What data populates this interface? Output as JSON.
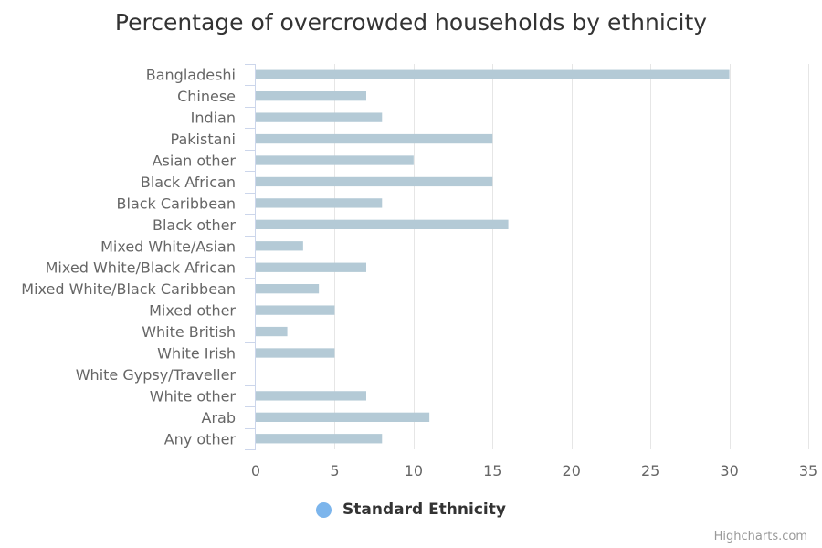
{
  "chart_data": {
    "type": "bar",
    "orientation": "horizontal",
    "title": "Percentage of overcrowded households by ethnicity",
    "categories": [
      "Bangladeshi",
      "Chinese",
      "Indian",
      "Pakistani",
      "Asian other",
      "Black African",
      "Black Caribbean",
      "Black other",
      "Mixed White/Asian",
      "Mixed White/Black African",
      "Mixed White/Black Caribbean",
      "Mixed other",
      "White British",
      "White Irish",
      "White Gypsy/Traveller",
      "White other",
      "Arab",
      "Any other"
    ],
    "series": [
      {
        "name": "Standard Ethnicity",
        "values": [
          30,
          7,
          8,
          15,
          10,
          15,
          8,
          16,
          3,
          7,
          4,
          5,
          2,
          5,
          null,
          7,
          11,
          8
        ]
      }
    ],
    "xlim": [
      0,
      35
    ],
    "ticks": [
      0,
      5,
      10,
      15,
      20,
      25,
      30,
      35
    ],
    "grid": true,
    "legend_position": "bottom-center"
  },
  "colors": {
    "bar": "#b4cad6",
    "legend_marker": "#7cb5ec",
    "grid": "#e6e6e6",
    "axis": "#ccd6eb"
  },
  "credits": "Highcharts.com"
}
